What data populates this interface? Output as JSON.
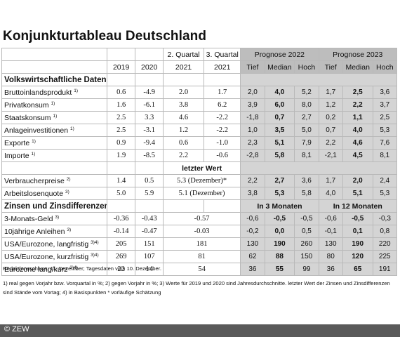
{
  "title": "Konjunkturtableau Deutschland",
  "header": {
    "years": [
      "2019",
      "2020",
      "2021",
      "2021"
    ],
    "quarters": [
      "2. Quartal",
      "3. Quartal"
    ],
    "prognose_2022": "Prognose 2022",
    "prognose_2023": "Prognose 2023",
    "sub_cols": [
      "Tief",
      "Median",
      "Hoch",
      "Tief",
      "Median",
      "Hoch"
    ]
  },
  "section1": {
    "title": "Volkswirtschaftliche Daten",
    "rows": [
      {
        "label": "Bruttoinlandsprodukt",
        "sup": "1)",
        "c2019": "0.6",
        "c2020": "-4.9",
        "q2": "2.0",
        "q3": "1.7",
        "p22": [
          "2,0",
          "4,0",
          "5,2"
        ],
        "p23": [
          "1,7",
          "2,5",
          "3,6"
        ]
      },
      {
        "label": "Privatkonsum",
        "sup": "1)",
        "c2019": "1.6",
        "c2020": "-6.1",
        "q2": "3.8",
        "q3": "6.2",
        "p22": [
          "3,9",
          "6,0",
          "8,0"
        ],
        "p23": [
          "1,2",
          "2,2",
          "3,7"
        ]
      },
      {
        "label": "Staatskonsum",
        "sup": "1)",
        "c2019": "2.5",
        "c2020": "3.3",
        "q2": "4.6",
        "q3": "-2.2",
        "p22": [
          "-1,8",
          "0,7",
          "2,7"
        ],
        "p23": [
          "0,2",
          "1,1",
          "2,5"
        ]
      },
      {
        "label": "Anlageinvestitionen",
        "sup": "1)",
        "c2019": "2.5",
        "c2020": "-3.1",
        "q2": "1.2",
        "q3": "-2.2",
        "p22": [
          "1,0",
          "3,5",
          "5,0"
        ],
        "p23": [
          "0,7",
          "4,0",
          "5,3"
        ]
      },
      {
        "label": "Exporte",
        "sup": "1)",
        "c2019": "0.9",
        "c2020": "-9.4",
        "q2": "0.6",
        "q3": "-1.0",
        "p22": [
          "2,3",
          "5,1",
          "7,9"
        ],
        "p23": [
          "2,2",
          "4,6",
          "7,6"
        ]
      },
      {
        "label": "Importe",
        "sup": "1)",
        "c2019": "1.9",
        "c2020": "-8.5",
        "q2": "2.2",
        "q3": "-0.6",
        "p22": [
          "-2,8",
          "5,8",
          "8,1"
        ],
        "p23": [
          "-2,1",
          "4,5",
          "8,1"
        ]
      }
    ]
  },
  "letzter_wert": "letzter Wert",
  "section1b": {
    "rows": [
      {
        "label": "Verbraucherpreise",
        "sup": "2)",
        "c2019": "1.4",
        "c2020": "0.5",
        "last": "5.3 (Dezember)*",
        "p22": [
          "2,2",
          "2,7",
          "3,6"
        ],
        "p23": [
          "1,7",
          "2,0",
          "2,4"
        ]
      },
      {
        "label": "Arbeitslosenquote",
        "sup": "3)",
        "c2019": "5.0",
        "c2020": "5.9",
        "last": "5.1 (Dezember)",
        "p22": [
          "3,8",
          "5,3",
          "5,8"
        ],
        "p23": [
          "4,0",
          "5,1",
          "5,3"
        ]
      }
    ]
  },
  "section2": {
    "title": "Zinsen und Zinsdifferenzen",
    "in3": "In 3 Monaten",
    "in12": "In 12 Monaten",
    "rows": [
      {
        "label": "3-Monats-Geld",
        "sup": "3)",
        "c2019": "-0.36",
        "c2020": "-0.43",
        "last": "-0.57",
        "p22": [
          "-0,6",
          "-0,5",
          "-0,5"
        ],
        "p23": [
          "-0,6",
          "-0,5",
          "-0,3"
        ]
      },
      {
        "label": "10jährige Anleihen",
        "sup": "3)",
        "c2019": "-0.14",
        "c2020": "-0.47",
        "last": "-0.03",
        "p22": [
          "-0,2",
          "0,0",
          "0,5"
        ],
        "p23": [
          "-0,1",
          "0,1",
          "0,8"
        ]
      },
      {
        "label": "USA/Eurozone, langfristig",
        "sup": "3)4)",
        "c2019": "205",
        "c2020": "151",
        "last": "181",
        "p22": [
          "130",
          "190",
          "260"
        ],
        "p23": [
          "130",
          "190",
          "220"
        ]
      },
      {
        "label": "USA/Eurozone, kurzfristig",
        "sup": "3)4)",
        "c2019": "269",
        "c2020": "107",
        "last": "81",
        "p22": [
          "62",
          "88",
          "150"
        ],
        "p23": [
          "80",
          "120",
          "225"
        ]
      },
      {
        "label": "Eurozone lang/kurz",
        "sup": "3)4)",
        "c2019": "22",
        "c2020": "14",
        "last": "54",
        "p22": [
          "36",
          "55",
          "99"
        ],
        "p23": [
          "36",
          "65",
          "191"
        ]
      }
    ]
  },
  "notes": {
    "redaktion": "Redaktionsschluss: 11. Dezember; Tagesdaten vom 10. Dezember.",
    "footnotes": "1) real gegen Vorjahr bzw. Vorquartal in %; 2) gegen Vorjahr in %; 3) Werte für 2019 und 2020 sind Jahresdurchschnitte. letzter Wert der Zinsen und Zinsdifferenzen sind Stände vom Vortag; 4) in Basispunkten * vorläufige Schätzung"
  },
  "copyright": "© ZEW"
}
